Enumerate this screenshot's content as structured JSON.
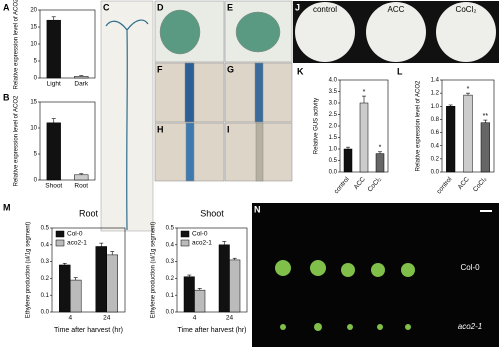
{
  "chart_data": [
    {
      "type": "bar",
      "panel": "A",
      "ylabel": "Relative expression level of ACO2",
      "categories": [
        "Light",
        "Dark"
      ],
      "values": [
        17,
        0.5
      ],
      "errors": [
        1,
        0.2
      ],
      "colors": [
        "#111111",
        "#cccccc"
      ],
      "ylim": [
        0,
        20
      ],
      "yticks": [
        0,
        5,
        10,
        15,
        20
      ]
    },
    {
      "type": "bar",
      "panel": "B",
      "ylabel": "Relative expression level of ACO2",
      "categories": [
        "Shoot",
        "Root"
      ],
      "values": [
        11,
        1
      ],
      "errors": [
        0.8,
        0.2
      ],
      "colors": [
        "#111111",
        "#cccccc"
      ],
      "ylim": [
        0,
        15
      ],
      "yticks": [
        0,
        5,
        10,
        15
      ]
    },
    {
      "type": "bar",
      "panel": "K",
      "ylabel": "Relative GUS activity",
      "categories": [
        "control",
        "ACC",
        "CoCl₂"
      ],
      "values": [
        1.0,
        3.0,
        0.8
      ],
      "errors": [
        0.08,
        0.3,
        0.08
      ],
      "colors": [
        "#111111",
        "#cccccc",
        "#666666"
      ],
      "ylim": [
        0,
        4
      ],
      "yticks": [
        {
          "value": 0,
          "label": "0.0"
        },
        {
          "value": 0.5,
          "label": "0.5"
        },
        {
          "value": 1,
          "label": "1.0"
        },
        {
          "value": 1.5,
          "label": "1.5"
        },
        {
          "value": 2,
          "label": "2.0"
        },
        {
          "value": 2.5,
          "label": "2.5"
        },
        {
          "value": 3,
          "label": "3.0"
        },
        {
          "value": 3.5,
          "label": "3.5"
        },
        {
          "value": 4,
          "label": "4.0"
        }
      ],
      "annotations": [
        {
          "category": "ACC",
          "text": "*"
        },
        {
          "category": "CoCl₂",
          "text": "*"
        }
      ]
    },
    {
      "type": "bar",
      "panel": "L",
      "ylabel": "Relative expression level of ACO2",
      "categories": [
        "control",
        "ACC",
        "CoCl₂"
      ],
      "values": [
        1.0,
        1.17,
        0.75
      ],
      "errors": [
        0.02,
        0.03,
        0.04
      ],
      "colors": [
        "#111111",
        "#cccccc",
        "#666666"
      ],
      "ylim": [
        0,
        1.4
      ],
      "yticks": [
        {
          "value": 0,
          "label": "0.0"
        },
        {
          "value": 0.2,
          "label": "0.2"
        },
        {
          "value": 0.4,
          "label": "0.4"
        },
        {
          "value": 0.6,
          "label": "0.6"
        },
        {
          "value": 0.8,
          "label": "0.8"
        },
        {
          "value": 1,
          "label": "1.0"
        },
        {
          "value": 1.2,
          "label": "1.2"
        },
        {
          "value": 1.4,
          "label": "1.4"
        }
      ],
      "annotations": [
        {
          "category": "ACC",
          "text": "*"
        },
        {
          "category": "CoCl₂",
          "text": "**"
        }
      ]
    },
    {
      "type": "bar",
      "panel": "M",
      "title": "Root",
      "ylabel": "Ethylene production (ul/1g segment)",
      "xlabel": "Time after harvest (hr)",
      "categories": [
        "4",
        "24"
      ],
      "series": [
        {
          "name": "Col-0",
          "color": "#111111",
          "values": [
            0.28,
            0.39
          ],
          "errors": [
            0.01,
            0.02
          ]
        },
        {
          "name": "aco2-1",
          "color": "#bbbbbb",
          "values": [
            0.19,
            0.34
          ],
          "errors": [
            0.015,
            0.02
          ]
        }
      ],
      "ylim": [
        0,
        0.5
      ],
      "yticks": [
        {
          "value": 0,
          "label": "0.0"
        },
        0.1,
        0.2,
        0.3,
        0.4,
        0.5
      ],
      "legend": "upper-left"
    },
    {
      "type": "bar",
      "title": "Shoot",
      "ylabel": "Ethylene production (ul/1g segment)",
      "xlabel": "Time after harvest (hr)",
      "categories": [
        "4",
        "24"
      ],
      "series": [
        {
          "name": "Col-0",
          "color": "#111111",
          "values": [
            0.21,
            0.4
          ],
          "errors": [
            0.01,
            0.02
          ]
        },
        {
          "name": "aco2-1",
          "color": "#bbbbbb",
          "values": [
            0.13,
            0.31
          ],
          "errors": [
            0.01,
            0.01
          ]
        }
      ],
      "ylim": [
        0,
        0.5
      ],
      "yticks": [
        {
          "value": 0,
          "label": "0.0"
        },
        0.1,
        0.2,
        0.3,
        0.4,
        0.5
      ],
      "legend": "upper-left"
    }
  ],
  "images": [
    {
      "panel": "C"
    },
    {
      "panel": "D"
    },
    {
      "panel": "E"
    },
    {
      "panel": "F"
    },
    {
      "panel": "G"
    },
    {
      "panel": "H"
    },
    {
      "panel": "I"
    },
    {
      "panel": "J",
      "labels": [
        "control",
        "ACC",
        "CoCl₂"
      ]
    },
    {
      "panel": "N",
      "labels": [
        "Col-0",
        "aco2-1"
      ]
    }
  ]
}
